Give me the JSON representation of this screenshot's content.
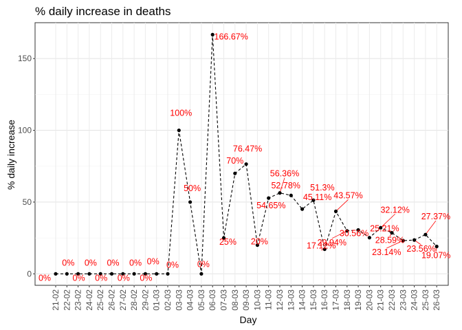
{
  "chart_data": {
    "type": "line",
    "title": "% daily increase in deaths",
    "xlabel": "Day",
    "ylabel": "% daily increase",
    "ylim": [
      -8,
      175
    ],
    "yticks": [
      0,
      50,
      100,
      150
    ],
    "grid": true,
    "line_style": "dashed",
    "label_color": "#ff0000",
    "point_color": "#000000",
    "categories": [
      "21-02",
      "22-02",
      "23-02",
      "24-02",
      "25-02",
      "26-02",
      "27-02",
      "28-02",
      "29-02",
      "01-03",
      "02-03",
      "03-03",
      "04-03",
      "05-03",
      "06-03",
      "07-03",
      "08-03",
      "09-03",
      "10-03",
      "11-03",
      "12-03",
      "13-03",
      "14-03",
      "15-03",
      "16-03",
      "17-03",
      "18-03",
      "19-03",
      "20-03",
      "21-03",
      "22-03",
      "23-03",
      "24-03",
      "25-03",
      "26-03"
    ],
    "values": [
      0,
      0,
      0,
      0,
      0,
      0,
      0,
      0,
      0,
      0,
      0,
      100,
      50,
      0,
      166.67,
      25,
      70,
      76.47,
      20,
      52.78,
      56.36,
      54.65,
      45.11,
      51.3,
      17.12,
      43.57,
      29.94,
      30.56,
      25.21,
      32.12,
      28.59,
      23.14,
      23.56,
      27.37,
      19.07
    ],
    "labels": [
      "0%",
      "0%",
      "0%",
      "0%",
      "0%",
      "0%",
      "0%",
      "0%",
      "0%",
      "0%",
      "0%",
      "100%",
      "50%",
      "0%",
      "166.67%",
      "25%",
      "70%",
      "76.47%",
      "20%",
      "52.78%",
      "56.36%",
      "54.65%",
      "45.11%",
      "51.3%",
      "17.12%",
      "43.57%",
      "29.94%",
      "30.56%",
      "25.21%",
      "32.12%",
      "28.59%",
      "23.14%",
      "23.56%",
      "27.37%",
      "19.07%"
    ]
  }
}
